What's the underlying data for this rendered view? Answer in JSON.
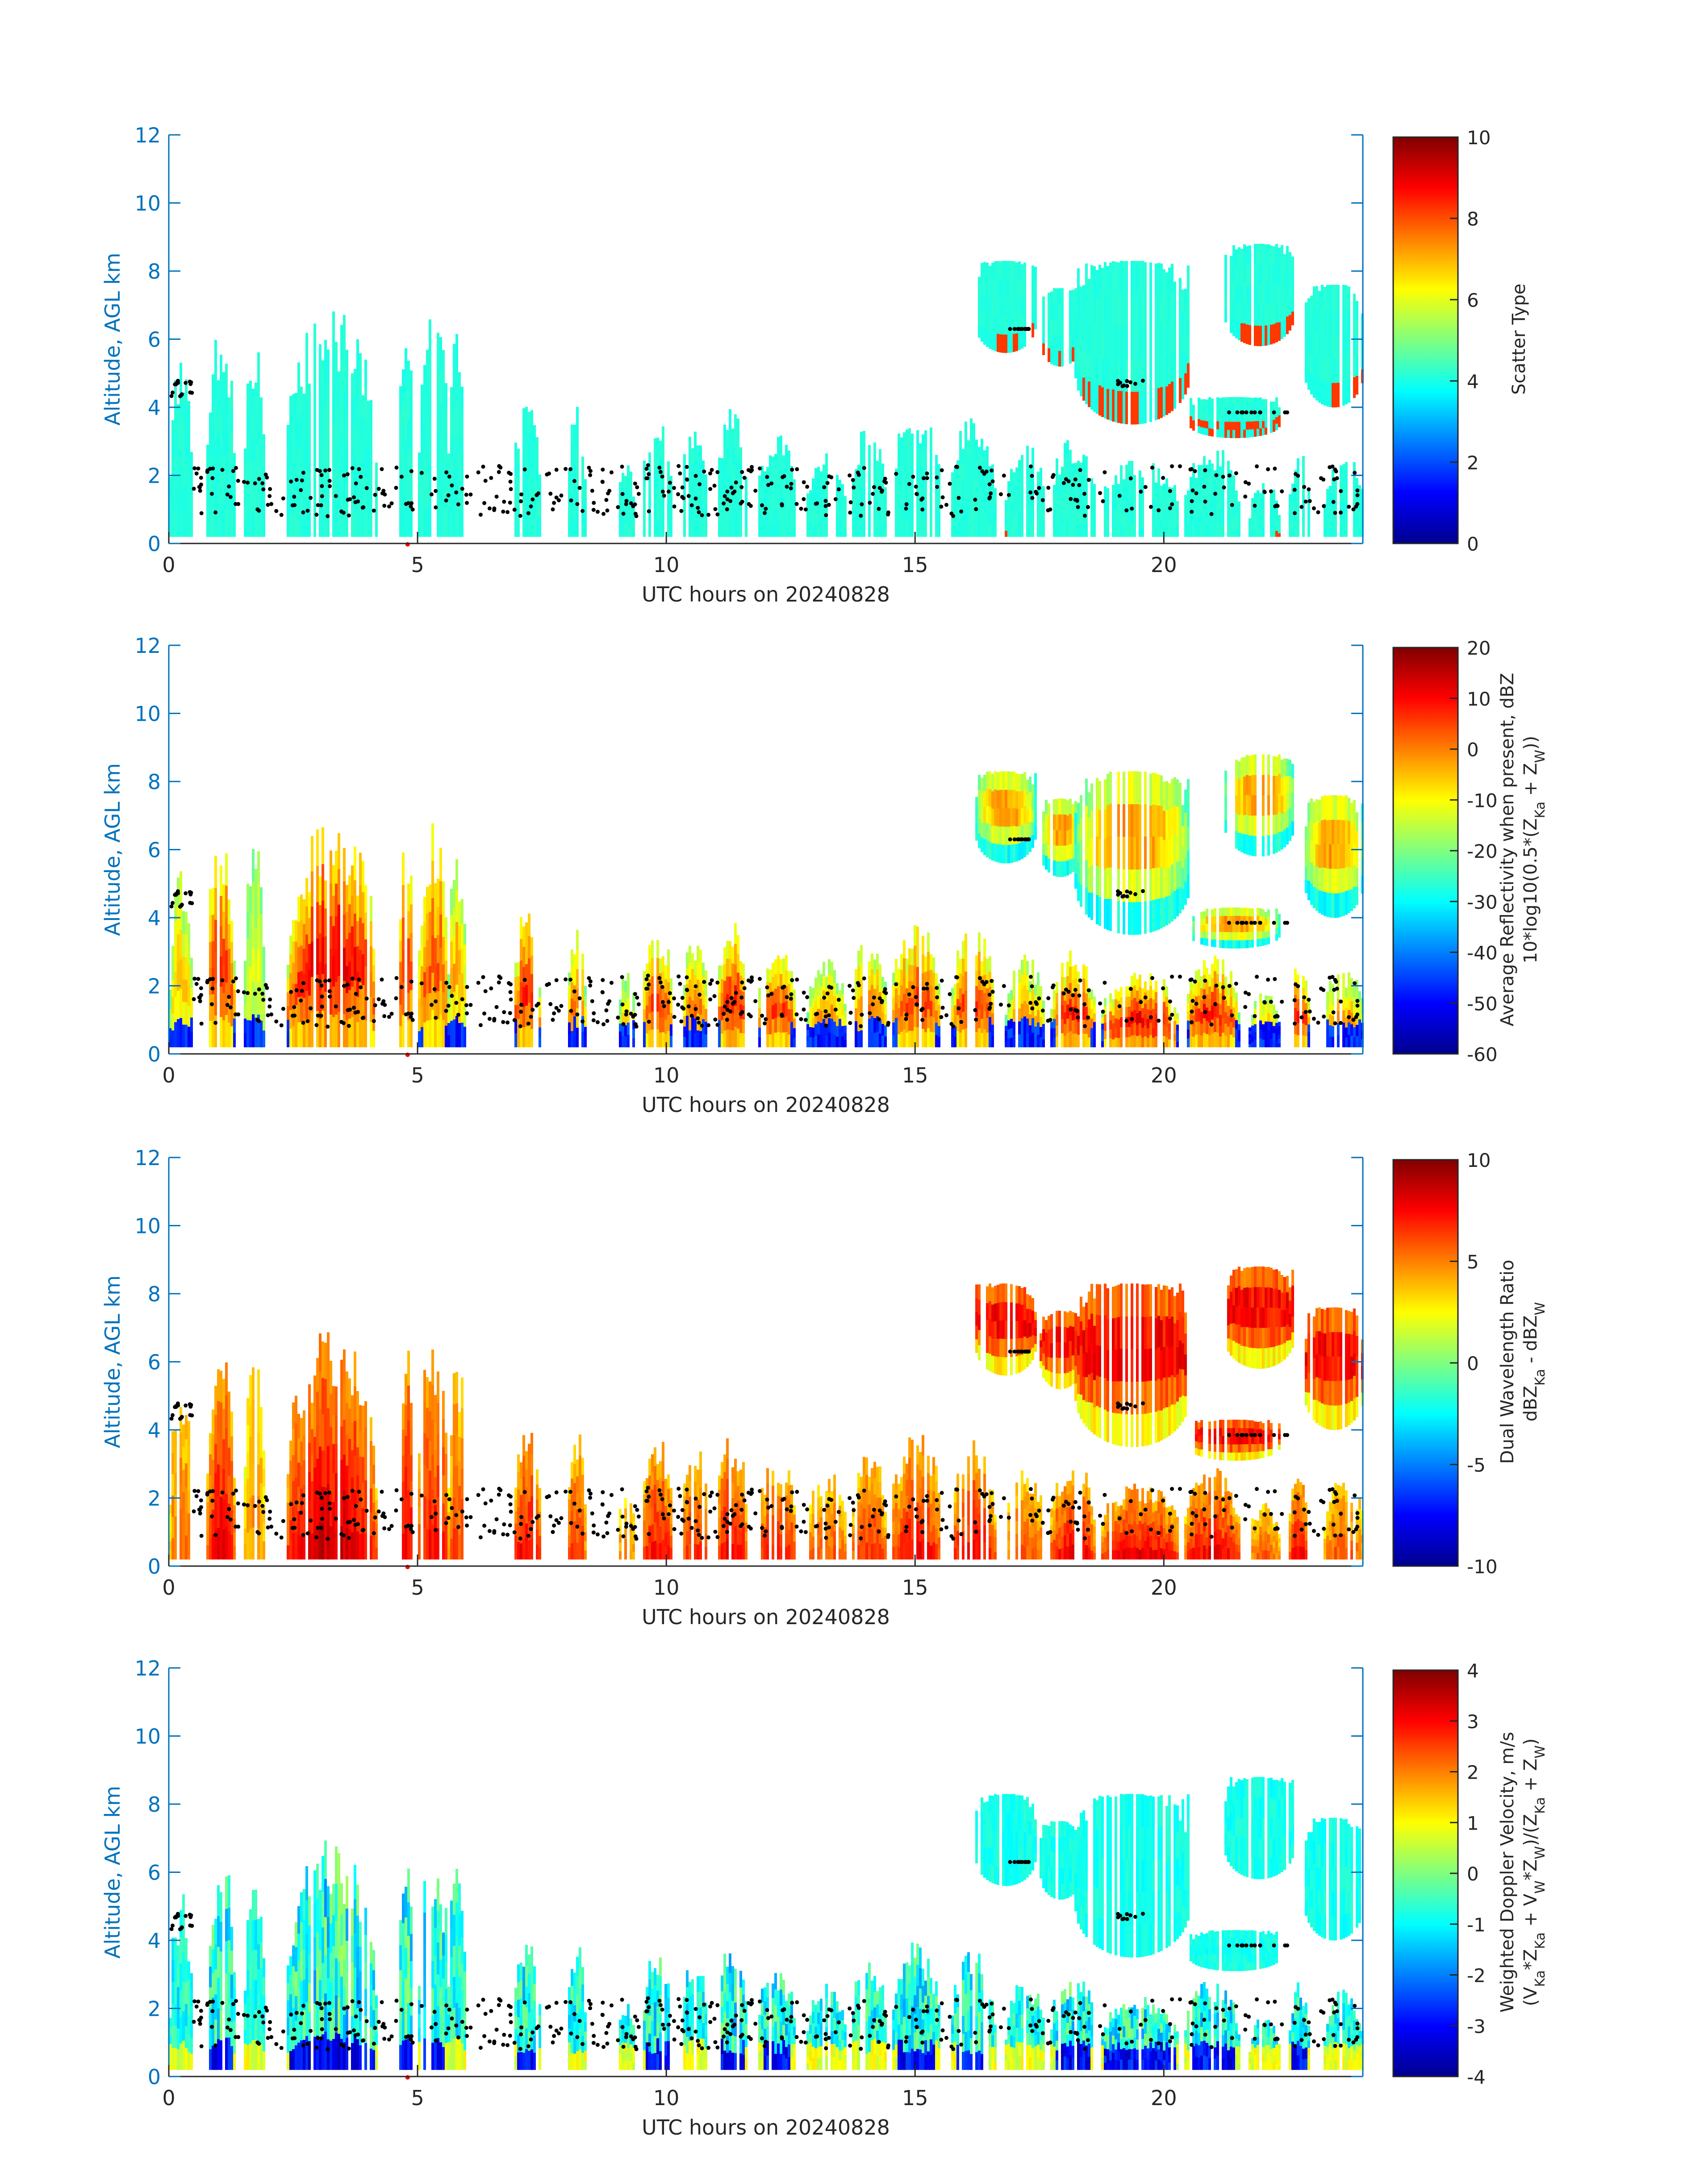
{
  "colors": {
    "axis_blue": "#0072BD",
    "text_dark": "#262626",
    "marker": "#000000",
    "time_marker": "#FF0000",
    "colormap": "jet"
  },
  "chart_data": [
    {
      "type": "heatmap",
      "ylabel": "Altitude, AGL km",
      "xlabel": "UTC hours on 20240828",
      "xlim": [
        0,
        24
      ],
      "ylim": [
        0,
        12
      ],
      "xticks": [
        0,
        5,
        10,
        15,
        20
      ],
      "yticks": [
        0,
        2,
        4,
        6,
        8,
        10,
        12
      ],
      "colorbar": {
        "label": [
          "Scatter Type"
        ],
        "clim": [
          0,
          10
        ],
        "ticks": [
          0,
          2,
          4,
          6,
          8,
          10
        ]
      },
      "marker_time": 4.8
    },
    {
      "type": "heatmap",
      "ylabel": "Altitude, AGL km",
      "xlabel": "UTC hours on 20240828",
      "xlim": [
        0,
        24
      ],
      "ylim": [
        0,
        12
      ],
      "xticks": [
        0,
        5,
        10,
        15,
        20
      ],
      "yticks": [
        0,
        2,
        4,
        6,
        8,
        10,
        12
      ],
      "colorbar": {
        "label": [
          "Average Reflectivity when present, dBZ",
          "10*log10(0.5*(Z_Ka + Z_W))"
        ],
        "clim": [
          -60,
          20
        ],
        "ticks": [
          -60,
          -50,
          -40,
          -30,
          -20,
          -10,
          0,
          10,
          20
        ]
      },
      "marker_time": 4.8
    },
    {
      "type": "heatmap",
      "ylabel": "Altitude, AGL km",
      "xlabel": "UTC hours on 20240828",
      "xlim": [
        0,
        24
      ],
      "ylim": [
        0,
        12
      ],
      "xticks": [
        0,
        5,
        10,
        15,
        20
      ],
      "yticks": [
        0,
        2,
        4,
        6,
        8,
        10,
        12
      ],
      "colorbar": {
        "label": [
          "Dual Wavelength Ratio",
          "dBZ_Ka - dBZ_W"
        ],
        "clim": [
          -10,
          10
        ],
        "ticks": [
          -10,
          -5,
          0,
          5,
          10
        ]
      },
      "marker_time": 4.8
    },
    {
      "type": "heatmap",
      "ylabel": "Altitude, AGL km",
      "xlabel": "UTC hours on 20240828",
      "xlim": [
        0,
        24
      ],
      "ylim": [
        0,
        12
      ],
      "xticks": [
        0,
        5,
        10,
        15,
        20
      ],
      "yticks": [
        0,
        2,
        4,
        6,
        8,
        10,
        12
      ],
      "colorbar": {
        "label": [
          "Weighted Doppler Velocity, m/s",
          "(V_Ka*Z_Ka + V_W*Z_W)/(Z_Ka + Z_W)"
        ],
        "clim": [
          -4,
          4
        ],
        "ticks": [
          -4,
          -3,
          -2,
          -1,
          0,
          1,
          2,
          3,
          4
        ]
      },
      "marker_time": 4.8
    }
  ]
}
